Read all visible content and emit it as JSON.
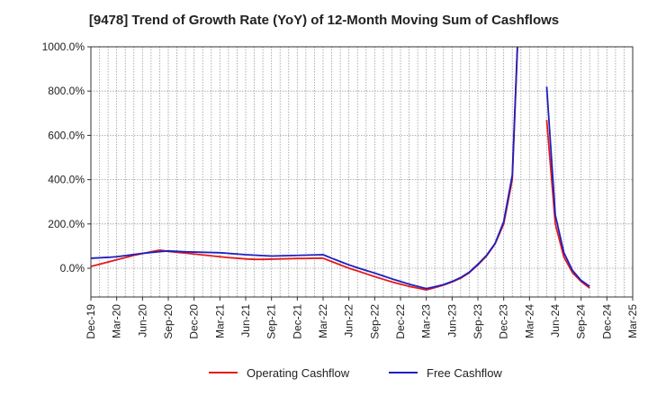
{
  "chart_data": {
    "type": "line",
    "title": "[9478]  Trend of Growth Rate (YoY) of 12-Month Moving Sum of Cashflows",
    "xlabel": "",
    "ylabel": "",
    "x": [
      "Dec-19",
      "Jan-20",
      "Feb-20",
      "Mar-20",
      "Apr-20",
      "May-20",
      "Jun-20",
      "Jul-20",
      "Aug-20",
      "Sep-20",
      "Oct-20",
      "Nov-20",
      "Dec-20",
      "Jan-21",
      "Feb-21",
      "Mar-21",
      "Apr-21",
      "May-21",
      "Jun-21",
      "Jul-21",
      "Aug-21",
      "Sep-21",
      "Oct-21",
      "Nov-21",
      "Dec-21",
      "Jan-22",
      "Feb-22",
      "Mar-22",
      "Apr-22",
      "May-22",
      "Jun-22",
      "Jul-22",
      "Aug-22",
      "Sep-22",
      "Oct-22",
      "Nov-22",
      "Dec-22",
      "Jan-23",
      "Feb-23",
      "Mar-23",
      "Apr-23",
      "May-23",
      "Jun-23",
      "Jul-23",
      "Aug-23",
      "Sep-23",
      "Oct-23",
      "Nov-23",
      "Dec-23",
      "Jan-24",
      "Feb-24",
      "Mar-24",
      "Apr-24",
      "May-24",
      "Jun-24",
      "Jul-24",
      "Aug-24",
      "Sep-24",
      "Oct-24",
      "Nov-24",
      "Dec-24",
      "Jan-25",
      "Feb-25",
      "Mar-25"
    ],
    "x_tick_labels": [
      "Dec-19",
      "Mar-20",
      "Jun-20",
      "Sep-20",
      "Dec-20",
      "Mar-21",
      "Jun-21",
      "Sep-21",
      "Dec-21",
      "Mar-22",
      "Jun-22",
      "Sep-22",
      "Dec-22",
      "Mar-23",
      "Jun-23",
      "Sep-23",
      "Dec-23",
      "Mar-24",
      "Jun-24",
      "Sep-24",
      "Dec-24",
      "Mar-25"
    ],
    "y_tick_labels": [
      "0.0%",
      "200.0%",
      "400.0%",
      "600.0%",
      "800.0%",
      "1000.0%"
    ],
    "ylim": [
      -130,
      1000
    ],
    "yticks": [
      0,
      200,
      400,
      600,
      800,
      1000
    ],
    "grid": true,
    "legend_position": "bottom",
    "series": [
      {
        "name": "Operating Cashflow",
        "color": "#e31a1c",
        "values": [
          8,
          18,
          28,
          38,
          48,
          58,
          66,
          74,
          82,
          76,
          72,
          68,
          64,
          60,
          56,
          52,
          48,
          45,
          42,
          40,
          40,
          41,
          42,
          43,
          44,
          44,
          45,
          45,
          30,
          15,
          0,
          -12,
          -25,
          -38,
          -50,
          -62,
          -72,
          -82,
          -90,
          -98,
          -88,
          -76,
          -62,
          -45,
          -20,
          15,
          55,
          110,
          200,
          400,
          1400,
          null,
          null,
          670,
          200,
          50,
          -20,
          -60,
          -90,
          null,
          null,
          null,
          null,
          null
        ]
      },
      {
        "name": "Free Cashflow",
        "color": "#1f1fbf",
        "values": [
          45,
          47,
          49,
          52,
          57,
          62,
          67,
          71,
          75,
          78,
          76,
          74,
          73,
          72,
          71,
          70,
          67,
          64,
          61,
          59,
          57,
          55,
          56,
          57,
          58,
          59,
          60,
          61,
          45,
          30,
          15,
          2,
          -10,
          -22,
          -35,
          -48,
          -60,
          -72,
          -82,
          -92,
          -84,
          -74,
          -60,
          -42,
          -18,
          18,
          58,
          112,
          210,
          420,
          1400,
          null,
          null,
          820,
          240,
          70,
          -10,
          -55,
          -82,
          null,
          null,
          null,
          null,
          null
        ]
      }
    ]
  }
}
